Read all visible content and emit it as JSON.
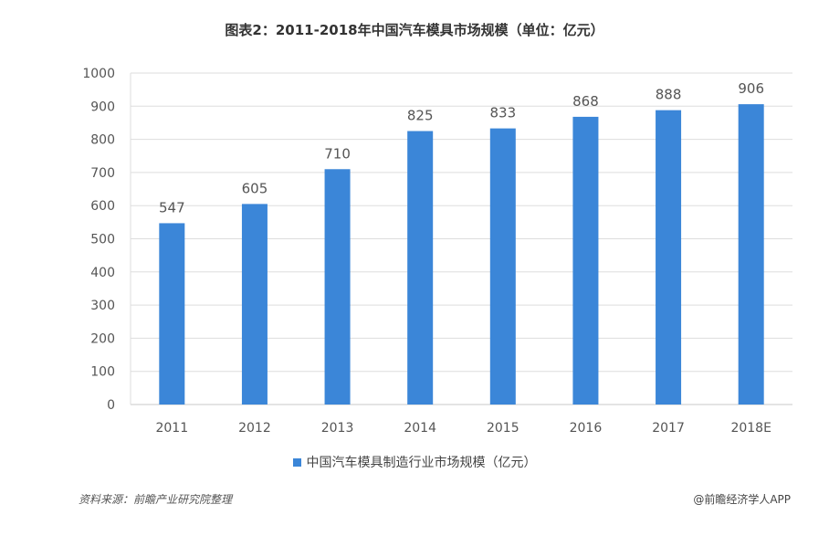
{
  "title": "图表2：2011-2018年中国汽车模具市场规模（单位：亿元）",
  "legend": "中国汽车模具制造行业市场规模（亿元）",
  "source": "资料来源：前瞻产业研究院整理",
  "credit": "@前瞻经济学人APP",
  "colors": {
    "bar": "#3b86d8",
    "grid": "#dddddd"
  },
  "chart_data": {
    "type": "bar",
    "categories": [
      "2011",
      "2012",
      "2013",
      "2014",
      "2015",
      "2016",
      "2017",
      "2018E"
    ],
    "series": [
      {
        "name": "中国汽车模具制造行业市场规模（亿元）",
        "values": [
          547,
          605,
          710,
          825,
          833,
          868,
          888,
          906
        ]
      }
    ],
    "ylim": [
      0,
      1000
    ],
    "yticks": [
      0,
      100,
      200,
      300,
      400,
      500,
      600,
      700,
      800,
      900,
      1000
    ],
    "grid": true,
    "legend_position": "bottom"
  }
}
